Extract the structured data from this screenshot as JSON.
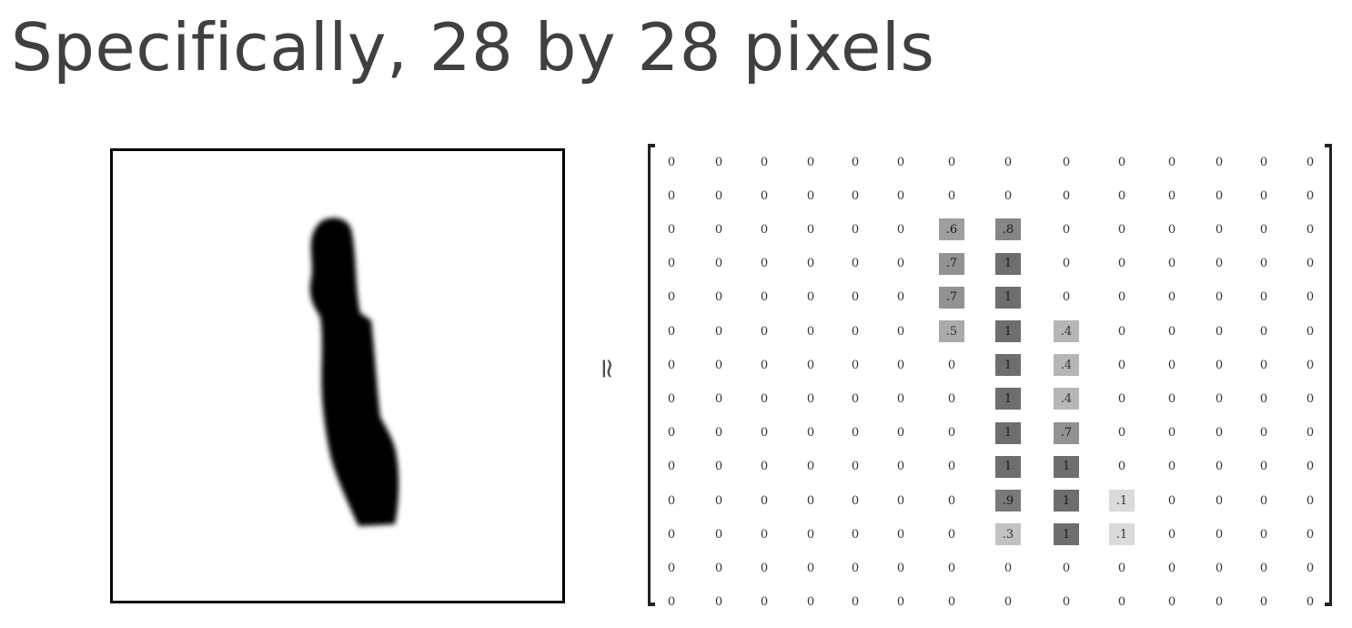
{
  "title": "Specifically, 28 by 28 pixels",
  "approx_symbol": "≃",
  "matrix": {
    "rows": [
      [
        "0",
        "0",
        "0",
        "0",
        "0",
        "0",
        "0",
        "0",
        "0",
        "0",
        "0",
        "0",
        "0",
        "0"
      ],
      [
        "0",
        "0",
        "0",
        "0",
        "0",
        "0",
        "0",
        "0",
        "0",
        "0",
        "0",
        "0",
        "0",
        "0"
      ],
      [
        "0",
        "0",
        "0",
        "0",
        "0",
        "0",
        ".6",
        ".8",
        "0",
        "0",
        "0",
        "0",
        "0",
        "0"
      ],
      [
        "0",
        "0",
        "0",
        "0",
        "0",
        "0",
        ".7",
        "1",
        "0",
        "0",
        "0",
        "0",
        "0",
        "0"
      ],
      [
        "0",
        "0",
        "0",
        "0",
        "0",
        "0",
        ".7",
        "1",
        "0",
        "0",
        "0",
        "0",
        "0",
        "0"
      ],
      [
        "0",
        "0",
        "0",
        "0",
        "0",
        "0",
        ".5",
        "1",
        ".4",
        "0",
        "0",
        "0",
        "0",
        "0"
      ],
      [
        "0",
        "0",
        "0",
        "0",
        "0",
        "0",
        "0",
        "1",
        ".4",
        "0",
        "0",
        "0",
        "0",
        "0"
      ],
      [
        "0",
        "0",
        "0",
        "0",
        "0",
        "0",
        "0",
        "1",
        ".4",
        "0",
        "0",
        "0",
        "0",
        "0"
      ],
      [
        "0",
        "0",
        "0",
        "0",
        "0",
        "0",
        "0",
        "1",
        ".7",
        "0",
        "0",
        "0",
        "0",
        "0"
      ],
      [
        "0",
        "0",
        "0",
        "0",
        "0",
        "0",
        "0",
        "1",
        "1",
        "0",
        "0",
        "0",
        "0",
        "0"
      ],
      [
        "0",
        "0",
        "0",
        "0",
        "0",
        "0",
        "0",
        ".9",
        "1",
        ".1",
        "0",
        "0",
        "0",
        "0"
      ],
      [
        "0",
        "0",
        "0",
        "0",
        "0",
        "0",
        "0",
        ".3",
        "1",
        ".1",
        "0",
        "0",
        "0",
        "0"
      ],
      [
        "0",
        "0",
        "0",
        "0",
        "0",
        "0",
        "0",
        "0",
        "0",
        "0",
        "0",
        "0",
        "0",
        "0"
      ],
      [
        "0",
        "0",
        "0",
        "0",
        "0",
        "0",
        "0",
        "0",
        "0",
        "0",
        "0",
        "0",
        "0",
        "0"
      ]
    ]
  },
  "colors": {
    "title_text": "#404040",
    "cell_shade_min": "#e6e6e6",
    "cell_shade_max": "#6e6e6e",
    "digit_stroke": "#000000"
  }
}
